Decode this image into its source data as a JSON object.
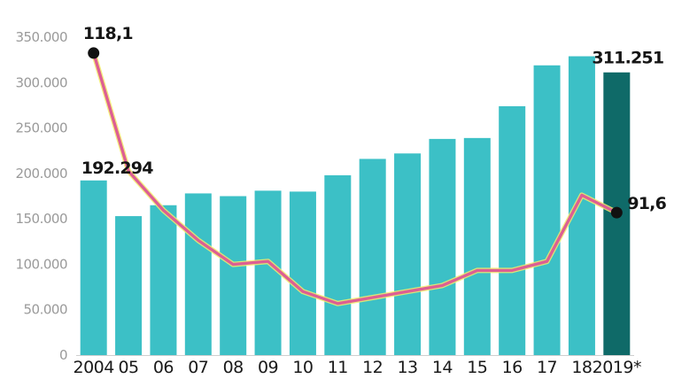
{
  "chart_data": {
    "type": "bar",
    "title": "",
    "xlabel": "",
    "ylabel": "",
    "ylim": [
      0,
      350000
    ],
    "grid": false,
    "legend": "none",
    "y_ticks": [
      "0",
      "50.000",
      "100.000",
      "150.000",
      "200.000",
      "250.000",
      "300.000",
      "350.000"
    ],
    "categories": [
      "2004",
      "05",
      "06",
      "07",
      "08",
      "09",
      "10",
      "11",
      "12",
      "13",
      "14",
      "15",
      "16",
      "17",
      "18",
      "2019*"
    ],
    "series": [
      {
        "kind": "bar",
        "values": [
          192294,
          153000,
          165000,
          178000,
          175000,
          181000,
          180000,
          198000,
          216000,
          222000,
          238000,
          239000,
          274000,
          319000,
          329000,
          311251
        ]
      },
      {
        "kind": "line",
        "axis_ylim": [
          70,
          120
        ],
        "values": [
          118.1,
          98.5,
          92.0,
          87.0,
          83.0,
          83.5,
          78.5,
          76.5,
          77.5,
          78.5,
          79.5,
          82.0,
          82.0,
          83.5,
          94.5,
          91.6
        ]
      }
    ],
    "data_labels": [
      {
        "text": "192.294",
        "category": "2004",
        "series": 0
      },
      {
        "text": "311.251",
        "category": "2019*",
        "series": 0
      },
      {
        "text": "118,1",
        "category": "2004",
        "series": 1
      },
      {
        "text": "91,6",
        "category": "2019*",
        "series": 1
      }
    ],
    "colors": {
      "bar": "#3cc0c6",
      "bar_highlight": "#0f6a68",
      "line": "#dd5f93",
      "line_glow": "#f2ec6a",
      "marker": "#111111",
      "tick_text": "#9a9a9a"
    }
  }
}
